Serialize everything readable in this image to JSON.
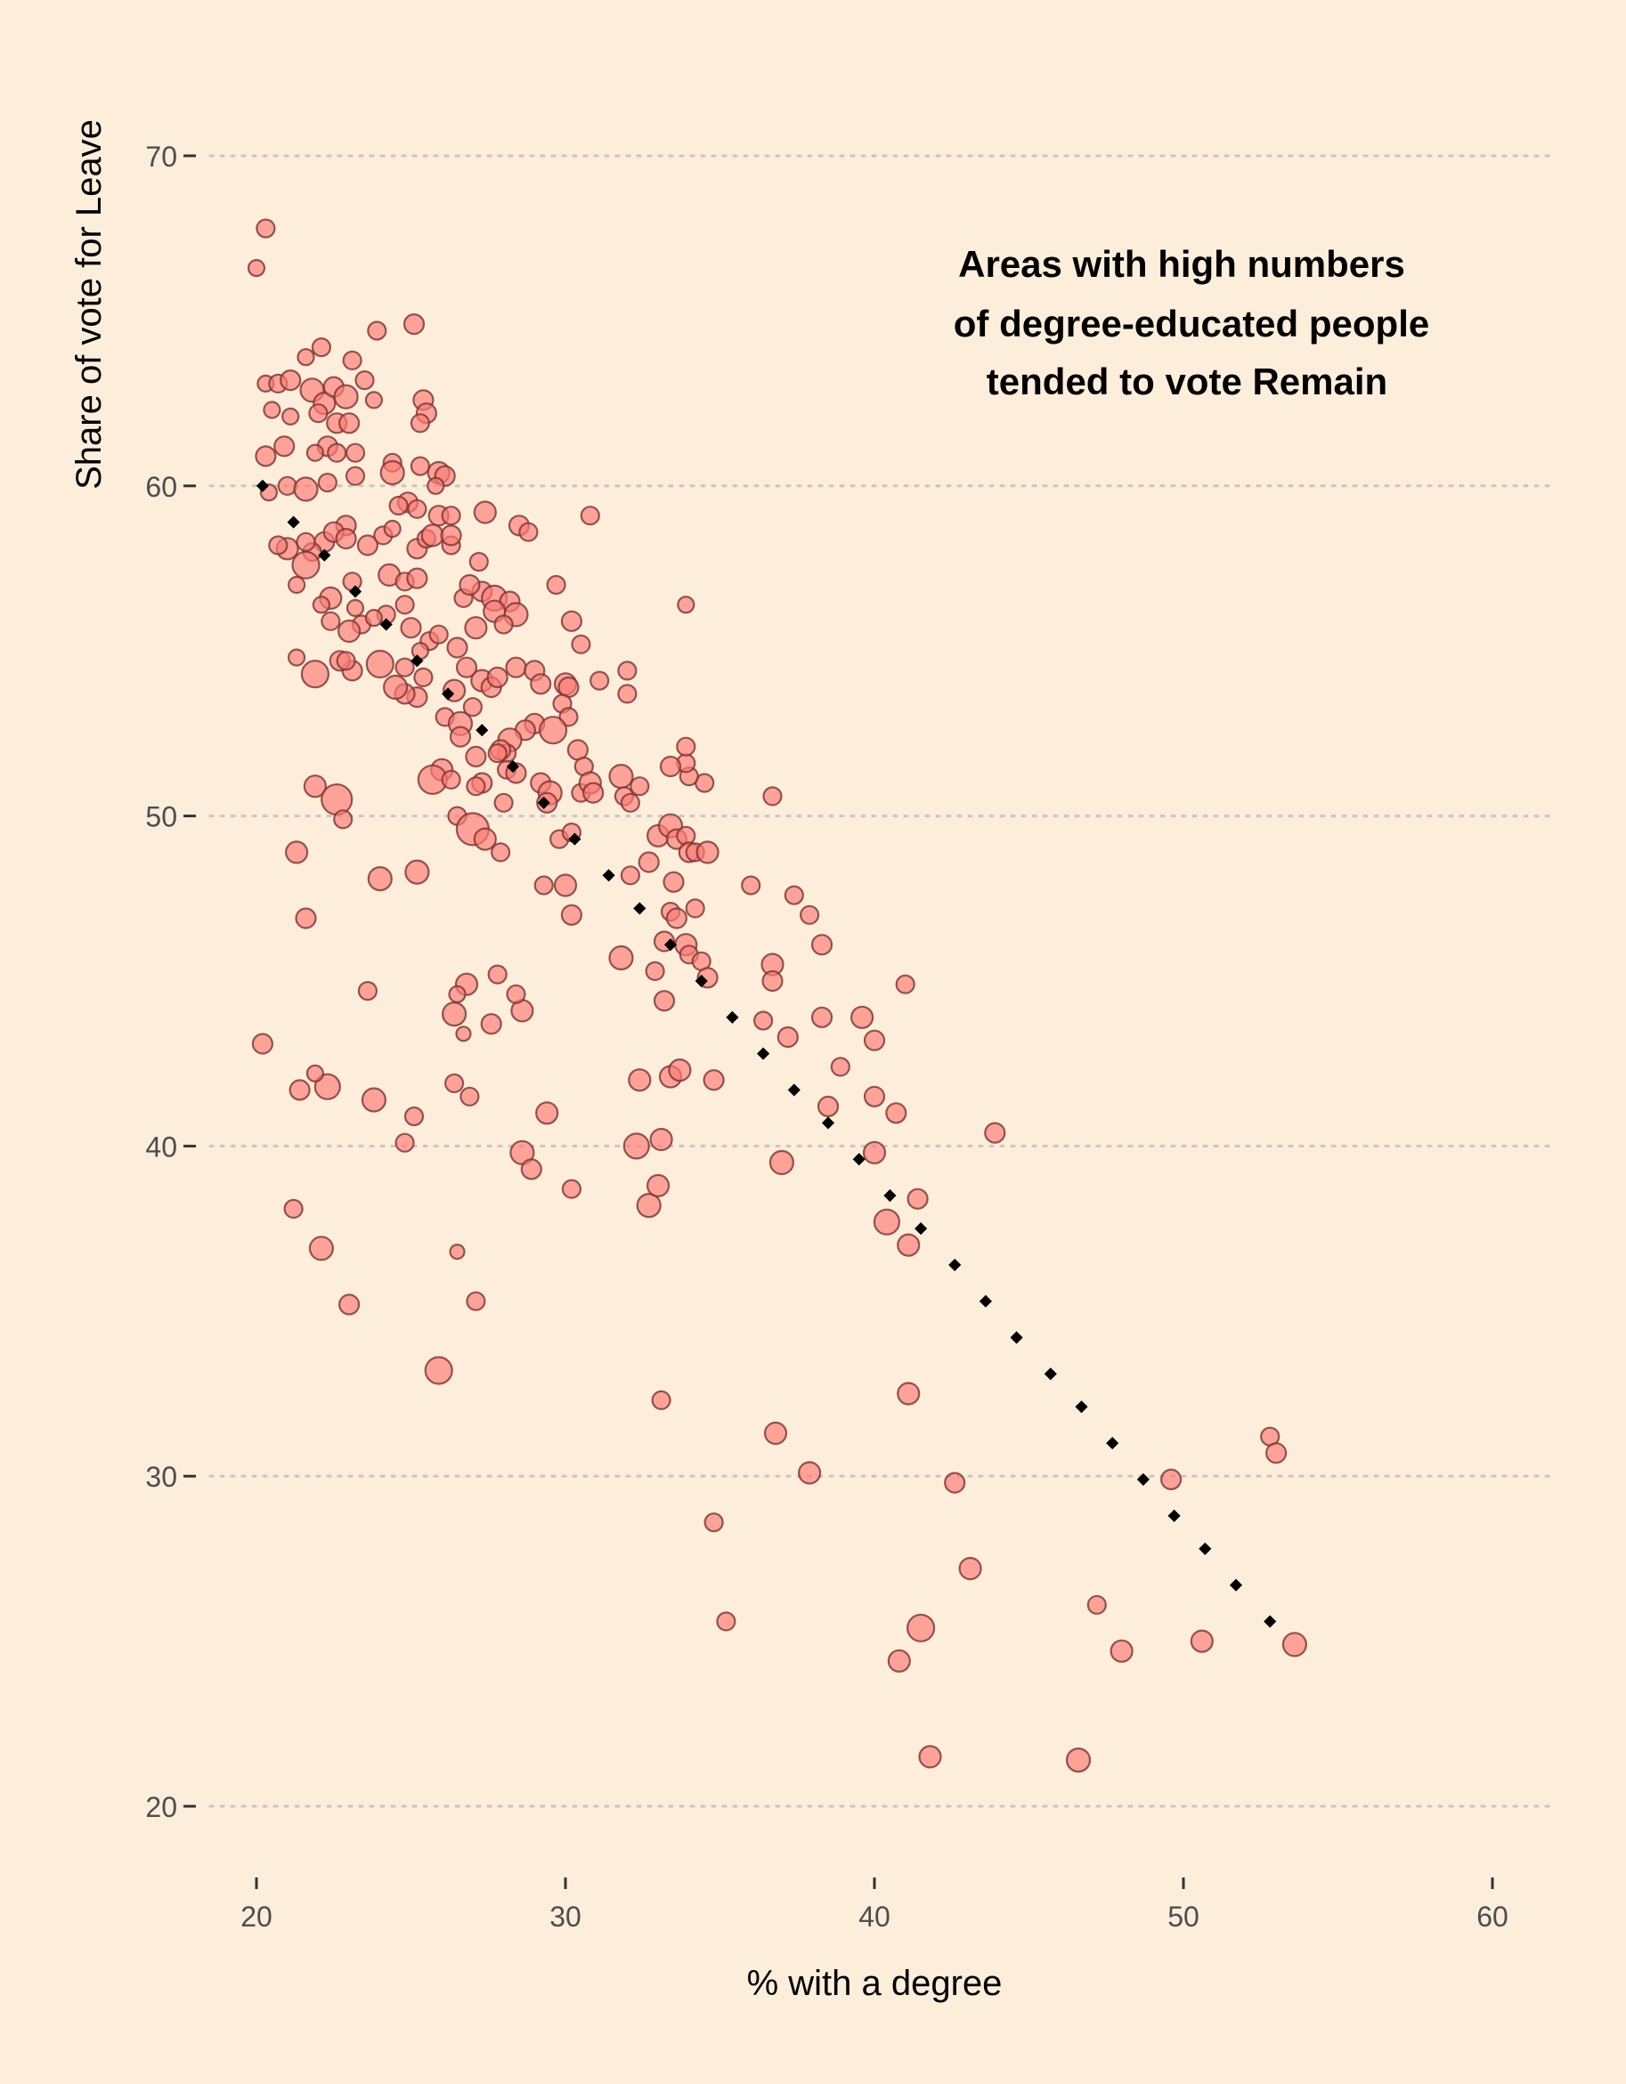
{
  "chart_data": {
    "type": "scatter",
    "title": "",
    "annotation": [
      "Areas with high numbers",
      "of degree-educated people",
      "tended to vote Remain"
    ],
    "xlabel": "% with a degree",
    "ylabel": "Share of vote for Leave",
    "xlim": [
      17.7,
      62
    ],
    "ylim": [
      18,
      74.5
    ],
    "xticks": [
      20,
      30,
      40,
      50,
      60
    ],
    "yticks": [
      20,
      30,
      40,
      50,
      60,
      70
    ],
    "grid": "horizontal dotted",
    "legend": "none",
    "colors": {
      "background": "#fdeedc",
      "point_fill": "#fb7e76",
      "point_stroke": "#7a3232",
      "trend": "#000000",
      "grid": "#c9c5c0",
      "axis_text": "#4d4d4d"
    },
    "points": [
      [
        20.0,
        66.6,
        9
      ],
      [
        20.3,
        67.8,
        10
      ],
      [
        20.3,
        63.1,
        9
      ],
      [
        20.7,
        63.1,
        10
      ],
      [
        21.1,
        63.2,
        11
      ],
      [
        20.5,
        62.3,
        9
      ],
      [
        21.1,
        62.1,
        9
      ],
      [
        20.9,
        61.2,
        11
      ],
      [
        20.3,
        60.9,
        11
      ],
      [
        20.4,
        59.8,
        9
      ],
      [
        21.0,
        60.0,
        10
      ],
      [
        21.6,
        59.9,
        13
      ],
      [
        21.8,
        62.9,
        13
      ],
      [
        22.2,
        62.5,
        12
      ],
      [
        22.5,
        63.0,
        11
      ],
      [
        22.9,
        62.7,
        13
      ],
      [
        22.6,
        61.9,
        11
      ],
      [
        22.0,
        62.2,
        10
      ],
      [
        23.0,
        61.9,
        11
      ],
      [
        22.3,
        61.2,
        11
      ],
      [
        22.6,
        61.0,
        10
      ],
      [
        21.9,
        61.0,
        9
      ],
      [
        22.3,
        60.1,
        10
      ],
      [
        23.2,
        60.3,
        10
      ],
      [
        21.6,
        63.9,
        9
      ],
      [
        22.1,
        64.2,
        10
      ],
      [
        23.1,
        63.8,
        10
      ],
      [
        23.5,
        63.2,
        10
      ],
      [
        23.8,
        62.6,
        9
      ],
      [
        23.9,
        64.7,
        10
      ],
      [
        25.1,
        64.9,
        11
      ],
      [
        25.4,
        62.6,
        11
      ],
      [
        25.5,
        62.2,
        11
      ],
      [
        25.3,
        61.9,
        10
      ],
      [
        23.2,
        61.0,
        10
      ],
      [
        24.4,
        60.7,
        10
      ],
      [
        24.4,
        60.4,
        13
      ],
      [
        25.3,
        60.6,
        10
      ],
      [
        25.9,
        60.4,
        12
      ],
      [
        26.1,
        60.3,
        11
      ],
      [
        25.8,
        60.0,
        9
      ],
      [
        25.9,
        59.1,
        11
      ],
      [
        26.3,
        59.1,
        10
      ],
      [
        24.9,
        59.5,
        11
      ],
      [
        25.2,
        59.3,
        10
      ],
      [
        24.6,
        59.4,
        10
      ],
      [
        23.6,
        58.2,
        11
      ],
      [
        24.1,
        58.5,
        10
      ],
      [
        24.4,
        58.7,
        9
      ],
      [
        22.9,
        58.8,
        11
      ],
      [
        22.2,
        58.3,
        11
      ],
      [
        22.5,
        58.6,
        11
      ],
      [
        21.8,
        58.0,
        10
      ],
      [
        21.0,
        58.1,
        12
      ],
      [
        20.7,
        58.2,
        10
      ],
      [
        21.6,
        58.3,
        10
      ],
      [
        21.6,
        57.6,
        15
      ],
      [
        21.3,
        57.0,
        9
      ],
      [
        22.4,
        56.6,
        12
      ],
      [
        22.1,
        56.4,
        9
      ],
      [
        22.9,
        58.4,
        11
      ],
      [
        23.1,
        57.1,
        10
      ],
      [
        23.2,
        56.3,
        9
      ],
      [
        23.4,
        55.8,
        10
      ],
      [
        23.0,
        55.6,
        12
      ],
      [
        22.4,
        55.9,
        10
      ],
      [
        24.3,
        57.3,
        12
      ],
      [
        24.8,
        57.1,
        10
      ],
      [
        25.2,
        57.2,
        11
      ],
      [
        24.8,
        56.4,
        10
      ],
      [
        24.2,
        56.1,
        10
      ],
      [
        23.8,
        56.0,
        9
      ],
      [
        25.0,
        55.7,
        11
      ],
      [
        25.6,
        55.3,
        10
      ],
      [
        25.9,
        55.5,
        10
      ],
      [
        25.3,
        55.0,
        9
      ],
      [
        24.8,
        54.5,
        10
      ],
      [
        25.4,
        54.2,
        10
      ],
      [
        25.2,
        53.6,
        11
      ],
      [
        24.8,
        53.7,
        11
      ],
      [
        24.5,
        53.9,
        13
      ],
      [
        24.0,
        54.6,
        15
      ],
      [
        23.1,
        54.4,
        11
      ],
      [
        22.7,
        54.7,
        11
      ],
      [
        22.9,
        54.7,
        10
      ],
      [
        21.9,
        54.3,
        15
      ],
      [
        21.3,
        54.8,
        9
      ],
      [
        26.3,
        58.2,
        10
      ],
      [
        25.2,
        58.1,
        11
      ],
      [
        25.5,
        58.4,
        10
      ],
      [
        25.7,
        58.5,
        12
      ],
      [
        26.3,
        58.5,
        11
      ],
      [
        27.4,
        59.2,
        12
      ],
      [
        28.5,
        58.8,
        11
      ],
      [
        28.8,
        58.6,
        10
      ],
      [
        29.7,
        57.0,
        10
      ],
      [
        27.2,
        57.7,
        10
      ],
      [
        27.3,
        56.8,
        11
      ],
      [
        27.7,
        56.6,
        14
      ],
      [
        28.2,
        56.5,
        11
      ],
      [
        28.4,
        56.1,
        13
      ],
      [
        27.7,
        56.2,
        12
      ],
      [
        27.1,
        55.7,
        12
      ],
      [
        26.7,
        56.6,
        10
      ],
      [
        26.9,
        57.0,
        11
      ],
      [
        28.0,
        55.8,
        10
      ],
      [
        26.5,
        55.1,
        11
      ],
      [
        26.8,
        54.5,
        11
      ],
      [
        27.3,
        54.1,
        12
      ],
      [
        27.6,
        53.9,
        11
      ],
      [
        27.8,
        54.2,
        11
      ],
      [
        28.4,
        54.5,
        11
      ],
      [
        29.0,
        54.4,
        11
      ],
      [
        29.2,
        54.0,
        11
      ],
      [
        30.2,
        55.9,
        11
      ],
      [
        30.5,
        55.2,
        10
      ],
      [
        31.1,
        54.1,
        10
      ],
      [
        30.0,
        54.0,
        12
      ],
      [
        30.1,
        53.9,
        11
      ],
      [
        29.9,
        53.4,
        10
      ],
      [
        30.1,
        53.0,
        10
      ],
      [
        29.0,
        52.8,
        11
      ],
      [
        28.7,
        52.6,
        11
      ],
      [
        28.2,
        52.3,
        13
      ],
      [
        28.1,
        51.9,
        10
      ],
      [
        27.9,
        52.0,
        11
      ],
      [
        27.8,
        51.9,
        10
      ],
      [
        28.1,
        51.4,
        10
      ],
      [
        28.4,
        51.3,
        11
      ],
      [
        28.0,
        50.4,
        10
      ],
      [
        26.4,
        53.8,
        12
      ],
      [
        26.1,
        53.0,
        10
      ],
      [
        26.6,
        52.8,
        13
      ],
      [
        26.6,
        52.4,
        11
      ],
      [
        27.0,
        53.3,
        10
      ],
      [
        26.0,
        51.4,
        12
      ],
      [
        25.7,
        51.1,
        16
      ],
      [
        26.3,
        51.1,
        10
      ],
      [
        27.1,
        51.8,
        11
      ],
      [
        27.3,
        51.0,
        11
      ],
      [
        27.1,
        50.9,
        10
      ],
      [
        26.5,
        50.0,
        10
      ],
      [
        27.0,
        49.6,
        18
      ],
      [
        27.4,
        49.3,
        12
      ],
      [
        27.9,
        48.9,
        10
      ],
      [
        29.2,
        51.0,
        11
      ],
      [
        29.5,
        50.7,
        13
      ],
      [
        29.4,
        50.4,
        11
      ],
      [
        29.6,
        52.6,
        15
      ],
      [
        30.4,
        52.0,
        11
      ],
      [
        30.6,
        51.5,
        10
      ],
      [
        30.5,
        50.7,
        10
      ],
      [
        30.8,
        51.0,
        12
      ],
      [
        30.9,
        50.7,
        11
      ],
      [
        31.8,
        51.2,
        13
      ],
      [
        31.9,
        50.6,
        10
      ],
      [
        32.4,
        50.9,
        10
      ],
      [
        32.1,
        50.4,
        10
      ],
      [
        32.0,
        54.4,
        10
      ],
      [
        32.0,
        53.7,
        10
      ],
      [
        32.7,
        48.6,
        11
      ],
      [
        32.1,
        48.2,
        10
      ],
      [
        33.0,
        49.4,
        12
      ],
      [
        33.4,
        49.7,
        13
      ],
      [
        33.6,
        49.3,
        11
      ],
      [
        33.9,
        49.4,
        10
      ],
      [
        34.0,
        48.9,
        11
      ],
      [
        34.2,
        48.9,
        10
      ],
      [
        34.6,
        48.9,
        12
      ],
      [
        34.5,
        51.0,
        10
      ],
      [
        34.0,
        51.2,
        10
      ],
      [
        33.9,
        51.6,
        10
      ],
      [
        33.4,
        51.5,
        11
      ],
      [
        33.9,
        52.1,
        10
      ],
      [
        33.9,
        56.4,
        9
      ],
      [
        33.5,
        48.0,
        11
      ],
      [
        33.4,
        47.1,
        10
      ],
      [
        33.6,
        46.9,
        11
      ],
      [
        34.2,
        47.2,
        10
      ],
      [
        33.9,
        46.1,
        12
      ],
      [
        34.0,
        45.8,
        10
      ],
      [
        34.4,
        45.6,
        10
      ],
      [
        34.6,
        45.1,
        11
      ],
      [
        33.2,
        44.4,
        11
      ],
      [
        33.2,
        46.2,
        11
      ],
      [
        32.9,
        45.3,
        10
      ],
      [
        31.8,
        45.7,
        13
      ],
      [
        30.0,
        47.9,
        12
      ],
      [
        30.2,
        47.0,
        11
      ],
      [
        29.3,
        47.9,
        10
      ],
      [
        29.8,
        49.3,
        10
      ],
      [
        30.2,
        49.5,
        10
      ],
      [
        30.8,
        59.1,
        10
      ],
      [
        29.4,
        41.0,
        12
      ],
      [
        30.2,
        38.7,
        10
      ],
      [
        28.6,
        39.8,
        13
      ],
      [
        28.9,
        39.3,
        11
      ],
      [
        28.6,
        44.1,
        12
      ],
      [
        28.4,
        44.6,
        10
      ],
      [
        27.8,
        45.2,
        10
      ],
      [
        27.6,
        43.7,
        11
      ],
      [
        26.8,
        44.9,
        12
      ],
      [
        26.4,
        44.0,
        13
      ],
      [
        26.5,
        44.6,
        9
      ],
      [
        26.7,
        43.4,
        8
      ],
      [
        26.4,
        41.9,
        10
      ],
      [
        26.9,
        41.5,
        10
      ],
      [
        26.5,
        36.8,
        8
      ],
      [
        27.1,
        35.3,
        10
      ],
      [
        25.9,
        33.2,
        15
      ],
      [
        25.1,
        40.9,
        10
      ],
      [
        24.8,
        40.1,
        10
      ],
      [
        23.8,
        41.4,
        13
      ],
      [
        22.3,
        41.8,
        14
      ],
      [
        21.4,
        41.7,
        11
      ],
      [
        21.9,
        42.2,
        9
      ],
      [
        23.6,
        44.7,
        10
      ],
      [
        25.2,
        48.3,
        13
      ],
      [
        24.0,
        48.1,
        13
      ],
      [
        21.3,
        48.9,
        12
      ],
      [
        21.6,
        46.9,
        11
      ],
      [
        21.9,
        50.9,
        12
      ],
      [
        22.6,
        50.5,
        17
      ],
      [
        22.8,
        49.9,
        10
      ],
      [
        20.2,
        43.1,
        11
      ],
      [
        21.2,
        38.1,
        10
      ],
      [
        22.1,
        36.9,
        13
      ],
      [
        23.0,
        35.2,
        11
      ],
      [
        32.4,
        42.0,
        12
      ],
      [
        32.3,
        40.0,
        14
      ],
      [
        33.1,
        40.2,
        12
      ],
      [
        32.7,
        38.2,
        13
      ],
      [
        33.0,
        38.8,
        12
      ],
      [
        33.4,
        42.1,
        12
      ],
      [
        33.7,
        42.3,
        12
      ],
      [
        34.8,
        42.0,
        11
      ],
      [
        33.1,
        32.3,
        10
      ],
      [
        34.8,
        28.6,
        10
      ],
      [
        35.2,
        25.6,
        10
      ],
      [
        36.4,
        43.8,
        10
      ],
      [
        36.7,
        45.5,
        12
      ],
      [
        36.7,
        45.0,
        11
      ],
      [
        37.2,
        43.3,
        11
      ],
      [
        36.7,
        50.6,
        10
      ],
      [
        36.0,
        47.9,
        10
      ],
      [
        37.4,
        47.6,
        10
      ],
      [
        37.9,
        47.0,
        10
      ],
      [
        38.3,
        46.1,
        11
      ],
      [
        38.3,
        43.9,
        11
      ],
      [
        38.5,
        41.2,
        11
      ],
      [
        38.9,
        42.4,
        10
      ],
      [
        39.6,
        43.9,
        12
      ],
      [
        40.0,
        43.2,
        11
      ],
      [
        40.0,
        41.5,
        11
      ],
      [
        40.7,
        41.0,
        11
      ],
      [
        41.0,
        44.9,
        10
      ],
      [
        40.0,
        39.8,
        12
      ],
      [
        40.4,
        37.7,
        14
      ],
      [
        41.1,
        37.0,
        12
      ],
      [
        41.4,
        38.4,
        11
      ],
      [
        37.0,
        39.5,
        13
      ],
      [
        36.8,
        31.3,
        12
      ],
      [
        37.9,
        30.1,
        12
      ],
      [
        41.1,
        32.5,
        12
      ],
      [
        42.6,
        29.8,
        11
      ],
      [
        43.1,
        27.2,
        12
      ],
      [
        41.5,
        25.4,
        15
      ],
      [
        40.8,
        24.4,
        12
      ],
      [
        41.8,
        21.5,
        12
      ],
      [
        46.6,
        21.4,
        13
      ],
      [
        47.2,
        26.1,
        10
      ],
      [
        48.0,
        24.7,
        12
      ],
      [
        49.6,
        29.9,
        11
      ],
      [
        50.6,
        25.0,
        12
      ],
      [
        52.8,
        31.2,
        10
      ],
      [
        53.0,
        30.7,
        11
      ],
      [
        53.6,
        24.9,
        13
      ],
      [
        43.9,
        40.4,
        11
      ]
    ],
    "trend_line": [
      [
        20.2,
        60.0
      ],
      [
        21.2,
        58.9
      ],
      [
        22.2,
        57.9
      ],
      [
        23.2,
        56.8
      ],
      [
        24.2,
        55.8
      ],
      [
        25.2,
        54.7
      ],
      [
        26.2,
        53.7
      ],
      [
        27.3,
        52.6
      ],
      [
        28.3,
        51.5
      ],
      [
        29.3,
        50.4
      ],
      [
        30.3,
        49.3
      ],
      [
        31.4,
        48.2
      ],
      [
        32.4,
        47.2
      ],
      [
        33.4,
        46.1
      ],
      [
        34.4,
        45.0
      ],
      [
        35.4,
        43.9
      ],
      [
        36.4,
        42.8
      ],
      [
        37.4,
        41.7
      ],
      [
        38.5,
        40.7
      ],
      [
        39.5,
        39.6
      ],
      [
        40.5,
        38.5
      ],
      [
        41.5,
        37.5
      ],
      [
        42.6,
        36.4
      ],
      [
        43.6,
        35.3
      ],
      [
        44.6,
        34.2
      ],
      [
        45.7,
        33.1
      ],
      [
        46.7,
        32.1
      ],
      [
        47.7,
        31.0
      ],
      [
        48.7,
        29.9
      ],
      [
        49.7,
        28.8
      ],
      [
        50.7,
        27.8
      ],
      [
        51.7,
        26.7
      ],
      [
        52.8,
        25.6
      ]
    ]
  }
}
